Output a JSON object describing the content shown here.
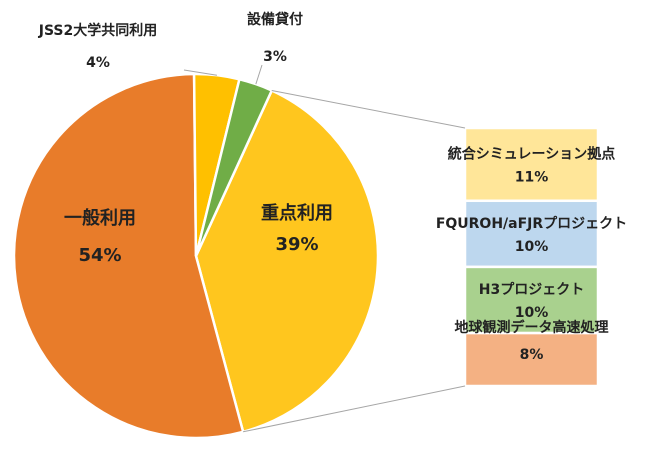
{
  "chart_data": {
    "type": "pie",
    "title": "",
    "series": [
      {
        "name": "main-pie",
        "categories": [
          "重点利用",
          "一般利用",
          "JSS2大学共同利用",
          "設備貸付"
        ],
        "values": [
          39,
          54,
          4,
          3
        ],
        "value_labels": [
          "39%",
          "54%",
          "4%",
          "3%"
        ],
        "colors": [
          "#FFC61E",
          "#E87C2A",
          "#FFC000",
          "#70AD47"
        ]
      },
      {
        "name": "breakdown-bar",
        "categories": [
          "統合シミュレーション拠点",
          "FQUROH/aFJRプロジェクト",
          "H3プロジェクト",
          "地球観測データ高速処理"
        ],
        "values": [
          11,
          10,
          10,
          8
        ],
        "value_labels": [
          "11%",
          "10%",
          "10%",
          "8%"
        ],
        "colors": [
          "#FFE699",
          "#BDD7EE",
          "#A9D18E",
          "#F4B183"
        ]
      }
    ],
    "breakdown_of": "重点利用"
  }
}
